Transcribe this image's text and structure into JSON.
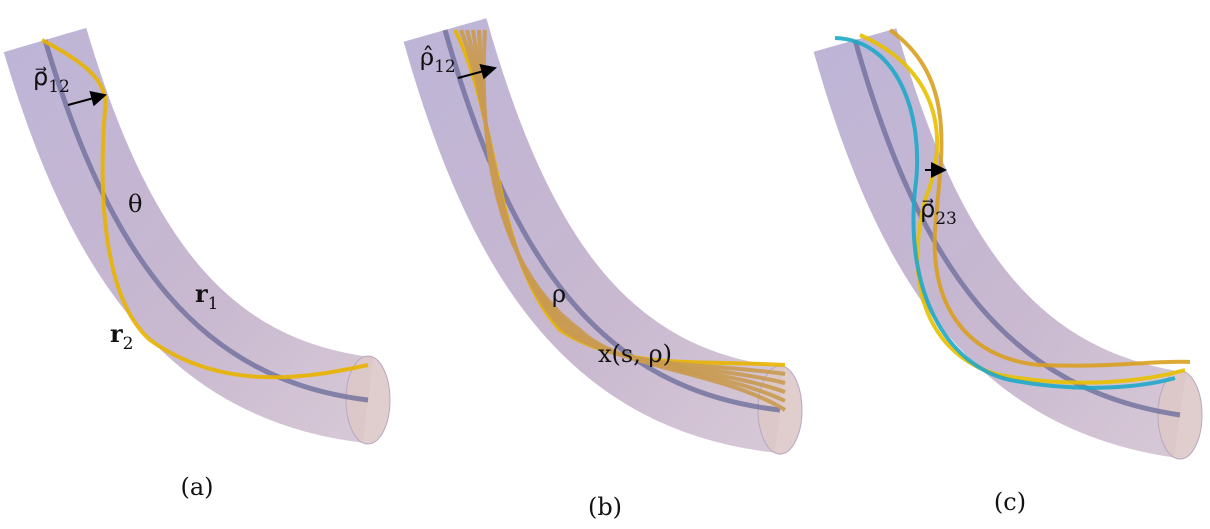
{
  "panels": [
    {
      "label": "(a)",
      "annotations": [
        {
          "symbol": "ρ⃗",
          "sub": "12"
        },
        {
          "symbol": "θ"
        },
        {
          "symbol": "r",
          "sub": "1"
        },
        {
          "symbol": "r",
          "sub": "2"
        }
      ]
    },
    {
      "label": "(b)",
      "annotations": [
        {
          "symbol": "ρ̂",
          "sub": "12"
        },
        {
          "symbol": "ρ"
        },
        {
          "symbol": "x(s, ρ)"
        }
      ]
    },
    {
      "label": "(c)",
      "annotations": [
        {
          "symbol": "ρ⃗",
          "sub": "23"
        }
      ]
    }
  ]
}
